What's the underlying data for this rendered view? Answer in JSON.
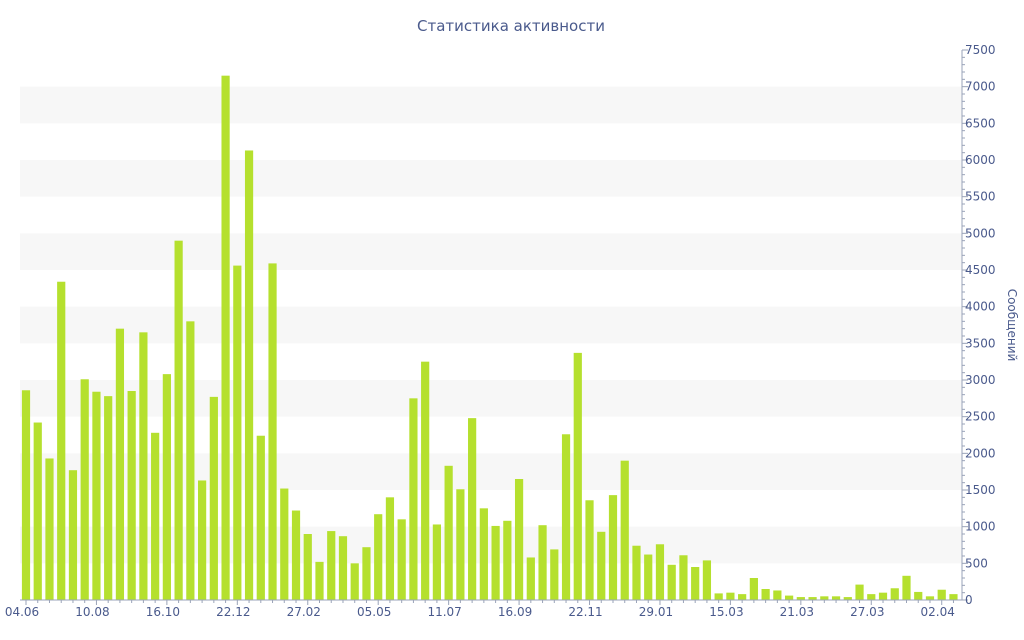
{
  "chart_data": {
    "type": "bar",
    "title": "Статистика активности",
    "ylabel": "Сообщений",
    "ylim": [
      0,
      7500
    ],
    "yticks": [
      0,
      500,
      1000,
      1500,
      2000,
      2500,
      3000,
      3500,
      4000,
      4500,
      5000,
      5500,
      6000,
      6500,
      7000,
      7500
    ],
    "xtick_labels": [
      {
        "index": 0,
        "label": "04.06"
      },
      {
        "index": 6,
        "label": "10.08"
      },
      {
        "index": 12,
        "label": "16.10"
      },
      {
        "index": 18,
        "label": "22.12"
      },
      {
        "index": 24,
        "label": "27.02"
      },
      {
        "index": 30,
        "label": "05.05"
      },
      {
        "index": 36,
        "label": "11.07"
      },
      {
        "index": 42,
        "label": "16.09"
      },
      {
        "index": 48,
        "label": "22.11"
      },
      {
        "index": 54,
        "label": "29.01"
      },
      {
        "index": 60,
        "label": "15.03"
      },
      {
        "index": 66,
        "label": "21.03"
      },
      {
        "index": 72,
        "label": "27.03"
      },
      {
        "index": 78,
        "label": "02.04"
      }
    ],
    "values": [
      2860,
      2420,
      1930,
      4340,
      1770,
      3010,
      2840,
      2780,
      3700,
      2850,
      3650,
      2280,
      3080,
      4900,
      3800,
      1630,
      2770,
      7150,
      4560,
      6130,
      2240,
      4590,
      1520,
      1220,
      900,
      520,
      940,
      870,
      500,
      720,
      1170,
      1400,
      1100,
      2750,
      3250,
      1030,
      1830,
      1510,
      2480,
      1250,
      1010,
      1080,
      1650,
      580,
      1020,
      690,
      2260,
      3370,
      1360,
      930,
      1430,
      1900,
      740,
      620,
      760,
      480,
      610,
      450,
      540,
      90,
      100,
      80,
      300,
      150,
      130,
      60,
      40,
      40,
      50,
      50,
      40,
      210,
      80,
      100,
      160,
      330,
      110,
      50,
      140,
      80
    ],
    "bar_color": "#b5e02e",
    "band_color": "#f7f7f7",
    "text_color": "#4a5a8c",
    "grid": "alternating-bands",
    "y_axis_position": "right"
  }
}
